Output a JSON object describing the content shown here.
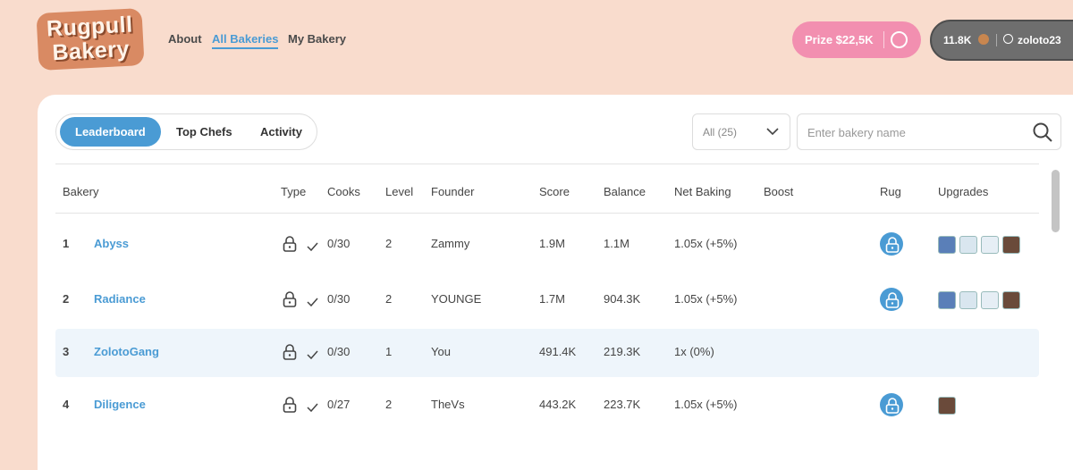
{
  "logo": [
    "Rugpull",
    "Bakery"
  ],
  "nav": [
    "About",
    "All Bakeries",
    "My Bakery"
  ],
  "prize": "Prize $22,5K",
  "cookies": "11.8K",
  "user": "zoloto23",
  "tabs": [
    "Leaderboard",
    "Top Chefs",
    "Activity"
  ],
  "filter": "All (25)",
  "search_placeholder": "Enter bakery name",
  "table": {
    "columns": [
      "Bakery",
      "Type",
      "Cooks",
      "Level",
      "Founder",
      "Score",
      "Balance",
      "Net Baking",
      "Boost",
      "Rug",
      "Upgrades"
    ],
    "rows": [
      [
        "1",
        "Abyss",
        "0/30",
        "2",
        "Zammy",
        "1.9M",
        "1.1M",
        "1.05x (+5%)"
      ],
      [
        "2",
        "Radiance",
        "0/30",
        "2",
        "YOUNGE",
        "1.7M",
        "904.3K",
        "1.05x (+5%)"
      ],
      [
        "3",
        "ZolotoGang",
        "0/30",
        "1",
        "You",
        "491.4K",
        "219.3K",
        "1x (0%)"
      ],
      [
        "4",
        "Diligence",
        "0/27",
        "2",
        "TheVs",
        "443.2K",
        "223.7K",
        "1.05x (+5%)"
      ]
    ]
  }
}
